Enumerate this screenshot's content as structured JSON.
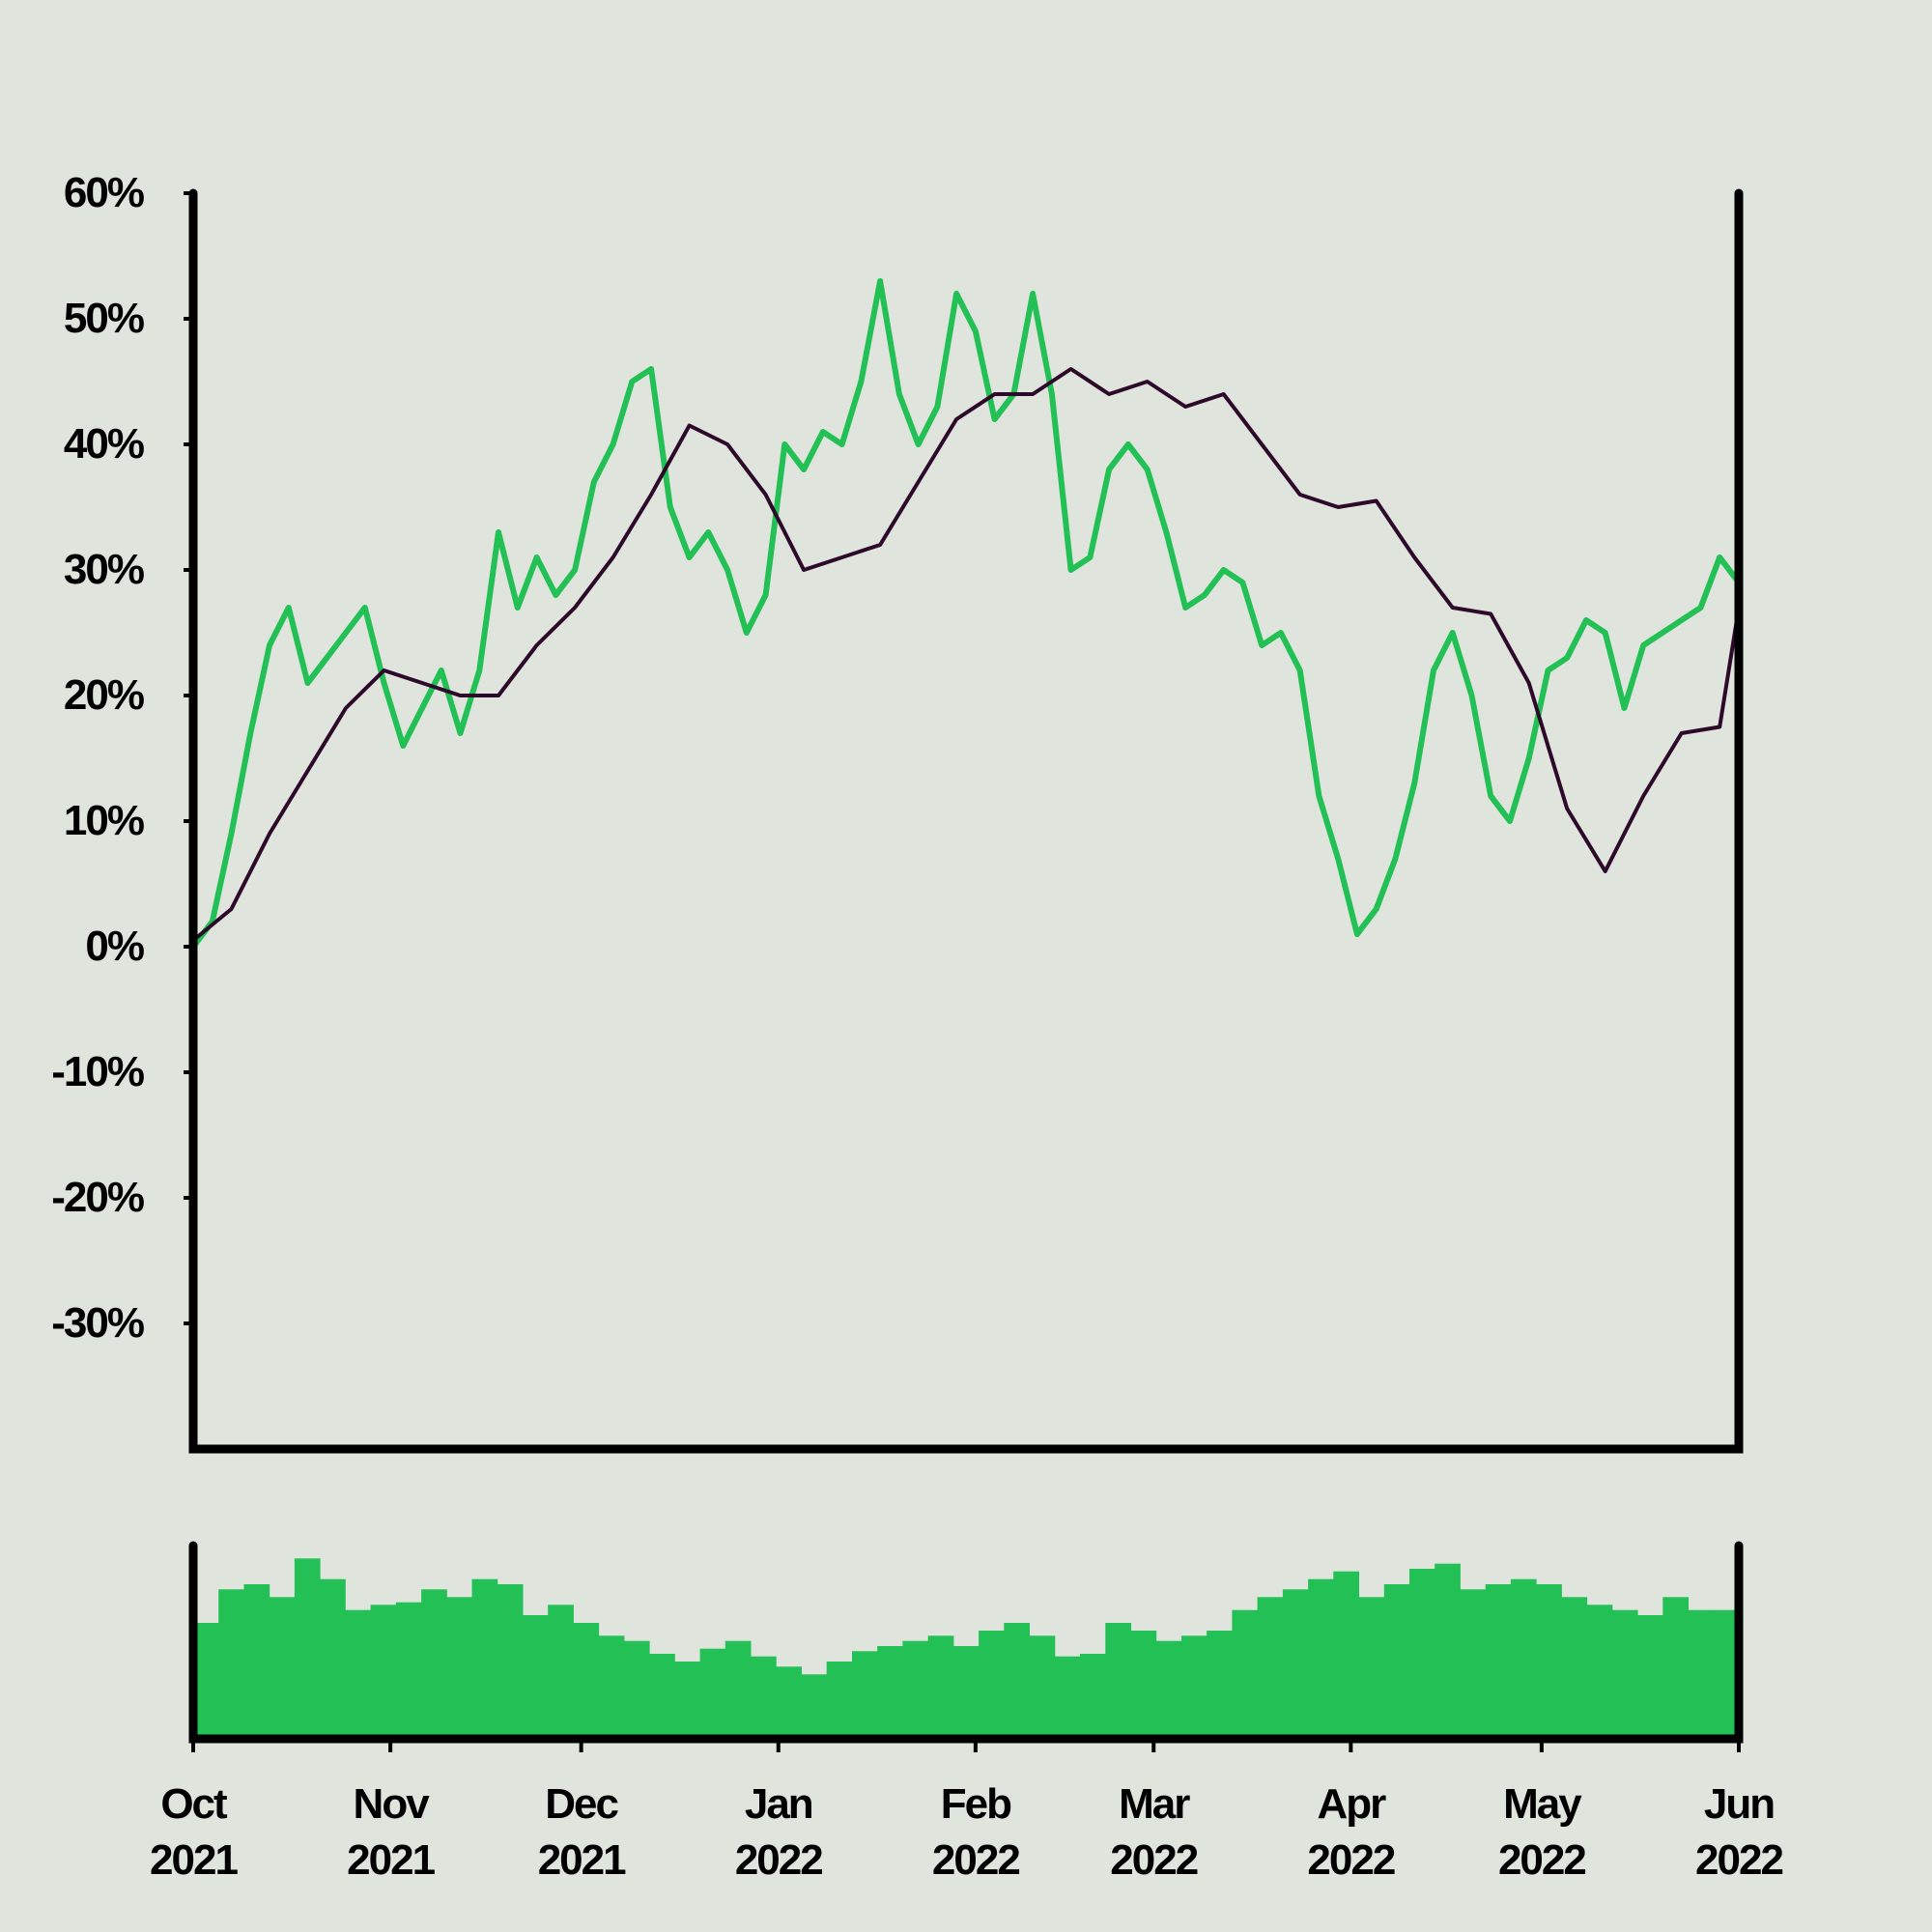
{
  "chart_data": {
    "type": "line",
    "title": "",
    "xlabel": "",
    "ylabel": "",
    "x_range": [
      "2021-10-01",
      "2022-06-01"
    ],
    "ylim": [
      -40,
      60
    ],
    "y_ticks": [
      60,
      50,
      40,
      30,
      20,
      10,
      0,
      -10,
      -20,
      -30
    ],
    "y_tick_labels": [
      "60%",
      "50%",
      "40%",
      "30%",
      "20%",
      "10%",
      "0%",
      "-10%",
      "-20%",
      "-30%"
    ],
    "x_ticks": [
      {
        "date": "2021-10-01",
        "line1": "Oct",
        "line2": "2021"
      },
      {
        "date": "2021-11-01",
        "line1": "Nov",
        "line2": "2021"
      },
      {
        "date": "2021-12-01",
        "line1": "Dec",
        "line2": "2021"
      },
      {
        "date": "2022-01-01",
        "line1": "Jan",
        "line2": "2022"
      },
      {
        "date": "2022-02-01",
        "line1": "Feb",
        "line2": "2022"
      },
      {
        "date": "2022-03-01",
        "line1": "Mar",
        "line2": "2022"
      },
      {
        "date": "2022-04-01",
        "line1": "Apr",
        "line2": "2022"
      },
      {
        "date": "2022-05-01",
        "line1": "May",
        "line2": "2022"
      },
      {
        "date": "2022-06-01",
        "line1": "Jun",
        "line2": "2022"
      }
    ],
    "grid": false,
    "legend": "none",
    "colors": {
      "return": "#22c055",
      "moving_average": "#2e0a2a",
      "volume": "#22c055",
      "axes": "#000000",
      "background": "#dfe4dd"
    },
    "series": [
      {
        "type": "line",
        "x": [
          "2021-10-01",
          "2021-10-04",
          "2021-10-07",
          "2021-10-10",
          "2021-10-13",
          "2021-10-16",
          "2021-10-19",
          "2021-10-22",
          "2021-10-25",
          "2021-10-28",
          "2021-10-31",
          "2021-11-03",
          "2021-11-06",
          "2021-11-09",
          "2021-11-12",
          "2021-11-15",
          "2021-11-18",
          "2021-11-21",
          "2021-11-24",
          "2021-11-27",
          "2021-11-30",
          "2021-12-03",
          "2021-12-06",
          "2021-12-09",
          "2021-12-12",
          "2021-12-15",
          "2021-12-18",
          "2021-12-21",
          "2021-12-24",
          "2021-12-27",
          "2021-12-30",
          "2022-01-02",
          "2022-01-05",
          "2022-01-08",
          "2022-01-11",
          "2022-01-14",
          "2022-01-17",
          "2022-01-20",
          "2022-01-23",
          "2022-01-26",
          "2022-01-29",
          "2022-02-01",
          "2022-02-04",
          "2022-02-07",
          "2022-02-10",
          "2022-02-13",
          "2022-02-16",
          "2022-02-19",
          "2022-02-22",
          "2022-02-25",
          "2022-02-28",
          "2022-03-03",
          "2022-03-06",
          "2022-03-09",
          "2022-03-12",
          "2022-03-15",
          "2022-03-18",
          "2022-03-21",
          "2022-03-24",
          "2022-03-27",
          "2022-03-30",
          "2022-04-02",
          "2022-04-05",
          "2022-04-08",
          "2022-04-11",
          "2022-04-14",
          "2022-04-17",
          "2022-04-20",
          "2022-04-23",
          "2022-04-26",
          "2022-04-29",
          "2022-05-02",
          "2022-05-05",
          "2022-05-08",
          "2022-05-11",
          "2022-05-14",
          "2022-05-17",
          "2022-05-20",
          "2022-05-23",
          "2022-05-26",
          "2022-05-29",
          "2022-06-01"
        ],
        "values": [
          0,
          2,
          9,
          17,
          24,
          27,
          21,
          23,
          25,
          27,
          21,
          16,
          19,
          22,
          17,
          22,
          33,
          27,
          31,
          28,
          30,
          37,
          40,
          45,
          46,
          35,
          31,
          33,
          30,
          25,
          28,
          40,
          38,
          41,
          40,
          45,
          53,
          44,
          40,
          43,
          52,
          49,
          42,
          44,
          52,
          44,
          30,
          31,
          38,
          40,
          38,
          33,
          27,
          28,
          30,
          29,
          24,
          25,
          22,
          12,
          7,
          1,
          3,
          7,
          13,
          22,
          25,
          20,
          12,
          10,
          15,
          22,
          23,
          26,
          25,
          19,
          24,
          25,
          26,
          27,
          31,
          29
        ]
      },
      {
        "type": "line",
        "x": [
          "2021-10-01",
          "2021-10-07",
          "2021-10-13",
          "2021-10-19",
          "2021-10-25",
          "2021-10-31",
          "2021-11-06",
          "2021-11-12",
          "2021-11-18",
          "2021-11-24",
          "2021-11-30",
          "2021-12-06",
          "2021-12-12",
          "2021-12-18",
          "2021-12-24",
          "2021-12-30",
          "2022-01-05",
          "2022-01-11",
          "2022-01-17",
          "2022-01-23",
          "2022-01-29",
          "2022-02-04",
          "2022-02-10",
          "2022-02-16",
          "2022-02-22",
          "2022-02-28",
          "2022-03-06",
          "2022-03-12",
          "2022-03-18",
          "2022-03-24",
          "2022-03-30",
          "2022-04-05",
          "2022-04-11",
          "2022-04-17",
          "2022-04-23",
          "2022-04-29",
          "2022-05-05",
          "2022-05-11",
          "2022-05-17",
          "2022-05-23",
          "2022-05-29",
          "2022-06-01"
        ],
        "values": [
          0.5,
          3,
          9,
          14,
          19,
          22,
          21,
          20,
          20,
          24,
          27,
          31,
          36,
          41.5,
          40,
          36,
          30,
          31,
          32,
          37,
          42,
          44,
          44,
          46,
          44,
          45,
          43,
          44,
          40,
          36,
          35,
          35.5,
          31,
          27,
          26.5,
          21,
          11,
          6,
          12,
          17,
          17.5,
          27
        ]
      }
    ],
    "volume": {
      "type": "bar",
      "x_range": [
        "2021-10-01",
        "2022-06-01"
      ],
      "values": [
        45,
        58,
        60,
        55,
        70,
        62,
        50,
        52,
        53,
        58,
        55,
        62,
        60,
        48,
        52,
        45,
        40,
        38,
        33,
        30,
        35,
        38,
        32,
        28,
        25,
        30,
        34,
        36,
        38,
        40,
        36,
        42,
        45,
        40,
        32,
        33,
        45,
        42,
        38,
        40,
        42,
        50,
        55,
        58,
        62,
        65,
        55,
        60,
        66,
        68,
        58,
        60,
        62,
        60,
        55,
        52,
        50,
        48,
        55,
        50,
        50
      ]
    }
  }
}
